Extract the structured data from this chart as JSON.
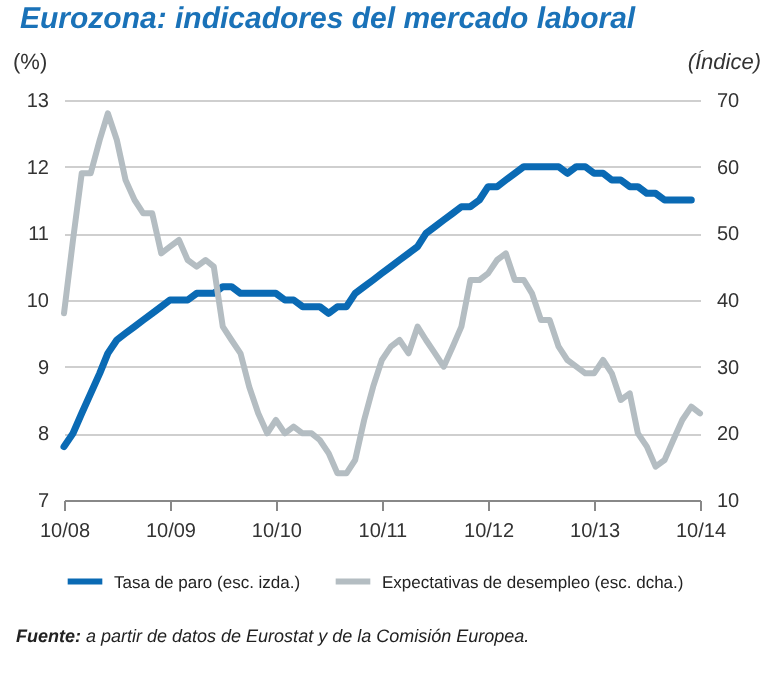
{
  "chart_data": {
    "type": "line",
    "title": "Eurozona: indicadores del mercado laboral",
    "ylabel": "(%)",
    "y2label": "(Índice)",
    "x": [
      "2008-10",
      "2008-11",
      "2008-12",
      "2009-01",
      "2009-02",
      "2009-03",
      "2009-04",
      "2009-05",
      "2009-06",
      "2009-07",
      "2009-08",
      "2009-09",
      "2009-10",
      "2009-11",
      "2009-12",
      "2010-01",
      "2010-02",
      "2010-03",
      "2010-04",
      "2010-05",
      "2010-06",
      "2010-07",
      "2010-08",
      "2010-09",
      "2010-10",
      "2010-11",
      "2010-12",
      "2011-01",
      "2011-02",
      "2011-03",
      "2011-04",
      "2011-05",
      "2011-06",
      "2011-07",
      "2011-08",
      "2011-09",
      "2011-10",
      "2011-11",
      "2011-12",
      "2012-01",
      "2012-02",
      "2012-03",
      "2012-04",
      "2012-05",
      "2012-06",
      "2012-07",
      "2012-08",
      "2012-09",
      "2012-10",
      "2012-11",
      "2012-12",
      "2013-01",
      "2013-02",
      "2013-03",
      "2013-04",
      "2013-05",
      "2013-06",
      "2013-07",
      "2013-08",
      "2013-09",
      "2013-10",
      "2013-11",
      "2013-12",
      "2014-01",
      "2014-02",
      "2014-03",
      "2014-04",
      "2014-05",
      "2014-06",
      "2014-07",
      "2014-08",
      "2014-09",
      "2014-10"
    ],
    "series": [
      {
        "name": "Tasa de paro (esc. izda.)",
        "color": "#0a6ab4",
        "values": [
          7.8,
          8.0,
          8.3,
          8.6,
          8.9,
          9.2,
          9.4,
          9.5,
          9.6,
          9.7,
          9.8,
          9.9,
          10.0,
          10.0,
          10.0,
          10.1,
          10.1,
          10.1,
          10.2,
          10.2,
          10.1,
          10.1,
          10.1,
          10.1,
          10.1,
          10.0,
          10.0,
          9.9,
          9.9,
          9.9,
          9.8,
          9.9,
          9.9,
          10.1,
          10.2,
          10.3,
          10.4,
          10.5,
          10.6,
          10.7,
          10.8,
          11.0,
          11.1,
          11.2,
          11.3,
          11.4,
          11.4,
          11.5,
          11.7,
          11.7,
          11.8,
          11.9,
          12.0,
          12.0,
          12.0,
          12.0,
          12.0,
          11.9,
          12.0,
          12.0,
          11.9,
          11.9,
          11.8,
          11.8,
          11.7,
          11.7,
          11.6,
          11.6,
          11.5,
          11.5,
          11.5,
          11.5,
          null
        ]
      },
      {
        "name": "Expectativas de desempleo (esc. dcha.)",
        "color": "#b4bdc2",
        "axis": "y2",
        "values": [
          38,
          49,
          59,
          59,
          64,
          68,
          64,
          58,
          55,
          53,
          53,
          47,
          48,
          49,
          46,
          45,
          46,
          45,
          36,
          34,
          32,
          27,
          23,
          20,
          22,
          20,
          21,
          20,
          20,
          19,
          17,
          14,
          14,
          16,
          22,
          27,
          31,
          33,
          34,
          32,
          36,
          34,
          32,
          30,
          33,
          36,
          43,
          43,
          44,
          46,
          47,
          43,
          43,
          41,
          37,
          37,
          33,
          31,
          30,
          29,
          29,
          31,
          29,
          25,
          26,
          20,
          18,
          15,
          16,
          19,
          22,
          24,
          23
        ]
      }
    ],
    "xlim": [
      "2008-10",
      "2014-10"
    ],
    "xticks": [
      {
        "value": "2008-10",
        "label": "10/08"
      },
      {
        "value": "2009-10",
        "label": "10/09"
      },
      {
        "value": "2010-10",
        "label": "10/10"
      },
      {
        "value": "2011-10",
        "label": "10/11"
      },
      {
        "value": "2012-10",
        "label": "10/12"
      },
      {
        "value": "2013-10",
        "label": "10/13"
      },
      {
        "value": "2014-10",
        "label": "10/14"
      }
    ],
    "ylim": [
      7,
      13
    ],
    "yticks": [
      7,
      8,
      9,
      10,
      11,
      12,
      13
    ],
    "y2lim": [
      10,
      70
    ],
    "y2ticks": [
      10,
      20,
      30,
      40,
      50,
      60,
      70
    ],
    "grid": "y",
    "legend": "bottom",
    "annotations": [
      "Fuente: a partir de datos de Eurostat y de la Comisión Europea."
    ]
  }
}
